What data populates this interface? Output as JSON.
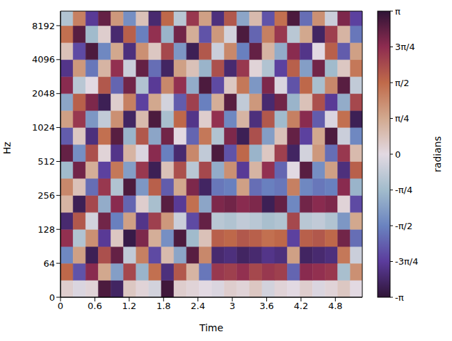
{
  "chart_data": {
    "type": "heatmap",
    "x_label": "Time",
    "y_label": "Hz",
    "log": "y",
    "xlim": [
      0,
      5.27
    ],
    "xticks": [
      0,
      0.6,
      1.2,
      1.8,
      2.4,
      3,
      3.6,
      4.2,
      4.8
    ],
    "ylim": [
      0,
      11025
    ],
    "yticks": [
      0,
      64,
      128,
      256,
      512,
      1024,
      2048,
      4096,
      8192
    ],
    "x_edges": [
      0,
      0.22,
      0.44,
      0.66,
      0.88,
      1.1,
      1.32,
      1.54,
      1.76,
      1.98,
      2.2,
      2.42,
      2.64,
      2.86,
      3.08,
      3.3,
      3.52,
      3.74,
      3.96,
      4.18,
      4.4,
      4.62,
      4.84,
      5.06,
      5.27
    ],
    "y_edges": [
      0,
      32,
      64,
      90,
      128,
      181,
      256,
      362,
      512,
      724,
      1024,
      1448,
      2048,
      2896,
      4096,
      5793,
      8192,
      11025
    ],
    "cells": [
      [
        0.2,
        -0.1,
        0.1,
        2.9,
        -2.8,
        0.3,
        0.1,
        -0.2,
        3.0,
        0.2,
        0.1,
        0.0,
        -0.1,
        0.2,
        0.1,
        0.3,
        -0.2,
        0.1,
        0.0,
        0.2,
        -0.1,
        0.1,
        0.3,
        0.0
      ],
      [
        1.6,
        -2.1,
        2.4,
        0.8,
        -1.2,
        2.0,
        -0.9,
        1.5,
        -2.6,
        1.8,
        0.6,
        -1.7,
        2.2,
        2.1,
        2.3,
        2.0,
        2.2,
        2.1,
        -1.9,
        2.4,
        2.3,
        2.2,
        -0.7,
        1.1
      ],
      [
        -1.5,
        0.9,
        -2.9,
        1.9,
        2.7,
        -0.4,
        1.3,
        -2.2,
        0.5,
        -1.1,
        2.8,
        1.2,
        -2.7,
        -2.6,
        -2.8,
        -2.7,
        -2.5,
        -2.6,
        0.9,
        -2.8,
        -2.7,
        -2.6,
        1.4,
        -0.3
      ],
      [
        2.3,
        -0.6,
        1.1,
        -2.4,
        0.3,
        -3.0,
        2.5,
        0.7,
        -1.4,
        2.9,
        -0.8,
        0.4,
        1.7,
        1.6,
        1.8,
        1.7,
        1.5,
        1.6,
        -2.3,
        1.7,
        1.8,
        1.6,
        2.6,
        -1.8
      ],
      [
        -2.7,
        1.8,
        -0.2,
        2.6,
        -1.6,
        0.9,
        -2.5,
        2.1,
        1.0,
        -0.3,
        -2.2,
        2.7,
        -0.5,
        -0.6,
        -0.4,
        -0.5,
        -0.7,
        -0.6,
        2.0,
        -0.5,
        -0.4,
        -0.6,
        -1.3,
        0.8
      ],
      [
        0.6,
        -2.9,
        2.0,
        -1.0,
        2.4,
        -1.9,
        0.2,
        -0.7,
        2.8,
        -2.4,
        1.5,
        -1.1,
        2.5,
        2.6,
        2.4,
        2.5,
        -2.9,
        2.7,
        -1.5,
        2.6,
        2.4,
        2.5,
        0.1,
        -2.2
      ],
      [
        1.2,
        0.4,
        -1.8,
        2.2,
        -0.6,
        2.9,
        -1.3,
        1.7,
        -2.0,
        0.8,
        2.5,
        -2.8,
        -1.7,
        -1.6,
        0.9,
        -1.8,
        -1.6,
        -1.7,
        1.3,
        -1.5,
        -1.7,
        -1.6,
        2.4,
        -0.9
      ],
      [
        -0.8,
        2.6,
        0.7,
        -2.3,
        1.4,
        -1.2,
        2.2,
        -2.9,
        0.4,
        1.9,
        -0.5,
        2.0,
        -1.0,
        1.1,
        -2.4,
        0.6,
        2.3,
        -1.9,
        0.0,
        2.8,
        -1.4,
        0.9,
        -2.6,
        1.7
      ],
      [
        2.7,
        -1.4,
        1.9,
        0.1,
        -2.5,
        0.6,
        -0.1,
        2.4,
        -1.6,
        -2.7,
        1.2,
        -0.4,
        2.9,
        -2.1,
        1.6,
        -0.9,
        0.3,
        2.1,
        -2.8,
        -0.2,
        1.0,
        -1.8,
        2.2,
        0.5
      ],
      [
        -2.0,
        0.3,
        -2.6,
        1.5,
        2.8,
        -0.9,
        1.8,
        -1.1,
        2.6,
        0.0,
        -1.9,
        1.4,
        -0.6,
        2.5,
        -2.9,
        1.9,
        -1.2,
        0.4,
        2.7,
        -2.3,
        0.8,
        2.9,
        -0.3,
        -1.5
      ],
      [
        0.9,
        2.2,
        -1.3,
        -0.4,
        1.1,
        -2.8,
        0.5,
        2.9,
        -0.7,
        1.6,
        -2.5,
        0.2,
        2.3,
        -1.5,
        0.6,
        -2.6,
        1.8,
        -0.8,
        1.3,
        2.4,
        -2.0,
        -0.1,
        1.5,
        -2.9
      ],
      [
        -1.1,
        1.7,
        2.5,
        -2.9,
        0.2,
        1.3,
        -2.3,
        0.8,
        -0.2,
        -2.0,
        2.1,
        -1.6,
        0.7,
        2.8,
        -0.4,
        1.0,
        -2.7,
        2.6,
        -0.9,
        0.4,
        1.9,
        -2.4,
        -1.0,
        2.0
      ],
      [
        2.4,
        -0.5,
        0.0,
        1.8,
        -1.9,
        2.6,
        -0.6,
        -2.4,
        1.2,
        2.3,
        -1.0,
        2.9,
        -2.2,
        0.3,
        1.4,
        -1.3,
        2.5,
        -0.1,
        -2.1,
        1.6,
        -0.7,
        1.2,
        2.8,
        -0.4
      ],
      [
        -2.5,
        1.0,
        -1.7,
        0.6,
        2.3,
        -0.3,
        2.7,
        -1.8,
        -2.8,
        0.9,
        0.4,
        -0.9,
        1.9,
        -2.7,
        2.2,
        0.1,
        -0.6,
        -2.3,
        1.7,
        -1.2,
        2.6,
        -0.8,
        0.3,
        1.4
      ],
      [
        0.4,
        -2.2,
        2.9,
        -1.5,
        0.8,
        -2.6,
        1.1,
        0.3,
        2.0,
        -1.3,
        -2.9,
        1.8,
        -0.3,
        1.2,
        -1.6,
        2.7,
        0.6,
        -1.0,
        2.4,
        -2.5,
        0.0,
        1.7,
        -2.0,
        0.9
      ],
      [
        1.5,
        2.8,
        -0.8,
        0.2,
        -2.7,
        1.7,
        -1.6,
        2.3,
        -0.9,
        2.6,
        0.7,
        -2.1,
        1.0,
        -0.2,
        2.9,
        -1.9,
        1.3,
        2.2,
        -0.5,
        0.8,
        -2.8,
        2.1,
        0.6,
        -1.7
      ],
      [
        -0.6,
        1.3,
        -2.4,
        2.7,
        1.0,
        -1.4,
        0.4,
        -2.7,
        1.6,
        -0.5,
        2.2,
        0.9,
        -2.6,
        1.8,
        -1.1,
        0.5,
        -2.1,
        1.5,
        2.9,
        -1.8,
        1.1,
        -0.3,
        2.5,
        -2.3
      ]
    ],
    "colorbar": {
      "label": "radians",
      "range": [
        -3.1416,
        3.1416
      ],
      "ticks": [
        {
          "value": -3.1416,
          "label": "-π"
        },
        {
          "value": -2.3562,
          "label": "-3π/4"
        },
        {
          "value": -1.5708,
          "label": "-π/2"
        },
        {
          "value": -0.7854,
          "label": "-π/4"
        },
        0,
        {
          "value": 0.7854,
          "label": "π/4"
        },
        {
          "value": 1.5708,
          "label": "π/2"
        },
        {
          "value": 2.3562,
          "label": "3π/4"
        },
        {
          "value": 3.1416,
          "label": "π"
        }
      ]
    }
  }
}
